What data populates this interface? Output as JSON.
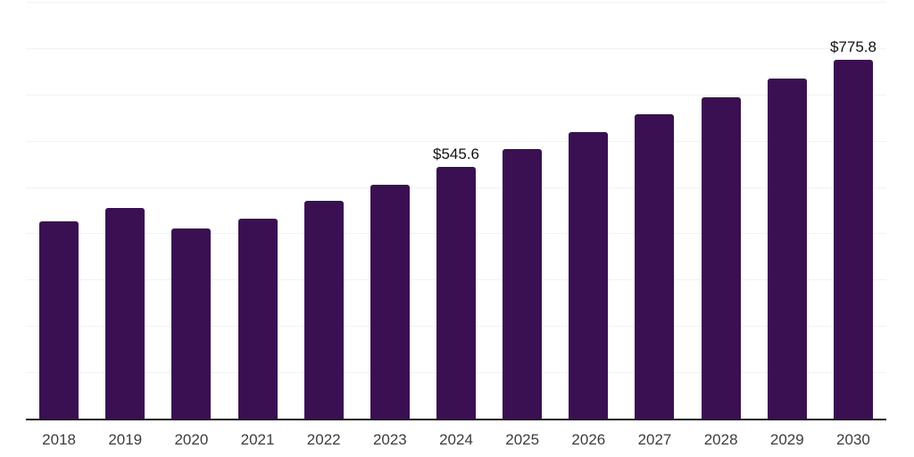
{
  "chart_data": {
    "type": "bar",
    "title": "",
    "xlabel": "",
    "ylabel": "",
    "categories": [
      "2018",
      "2019",
      "2020",
      "2021",
      "2022",
      "2023",
      "2024",
      "2025",
      "2026",
      "2027",
      "2028",
      "2029",
      "2030"
    ],
    "values": [
      428.4,
      457.1,
      412.4,
      433.5,
      471.3,
      507.7,
      545.6,
      583.9,
      619.9,
      658.3,
      696.6,
      736.8,
      775.8
    ],
    "point_labels": [
      "",
      "",
      "",
      "",
      "",
      "",
      "$545.6",
      "",
      "",
      "",
      "",
      "",
      "$775.8"
    ],
    "ylim": [
      0,
      900
    ],
    "grid_step": 100,
    "grid": true,
    "legend": false,
    "axis_ticks_shown": false,
    "colors": {
      "bar": "#3a1052",
      "gridline": "#f2f2f2",
      "axis_line": "#212121",
      "category_label": "#3d3d3d",
      "value_label": "#111111",
      "background": "#ffffff"
    }
  }
}
